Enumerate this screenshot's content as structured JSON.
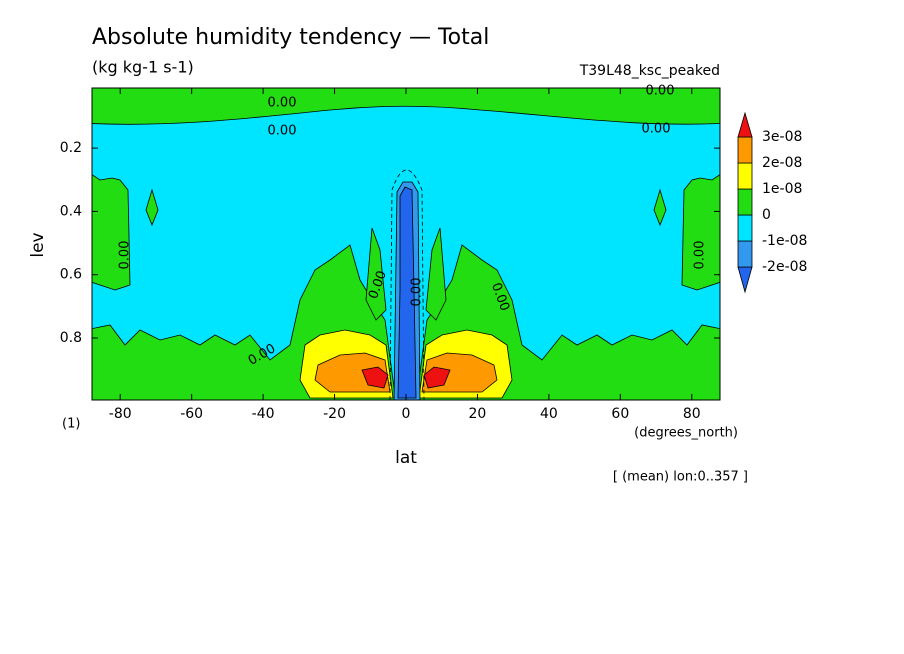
{
  "chart_data": {
    "type": "contour",
    "title": "Absolute humidity tendency — Total",
    "subtitle": "(kg kg-1 s-1)",
    "experiment": "T39L48_ksc_peaked",
    "xlabel": "lat",
    "ylabel": "lev",
    "x_unit": "(degrees_north)",
    "y_unit": "(1)",
    "note": "[ (mean) lon:0..357 ]",
    "xlim": [
      -87.9,
      87.9
    ],
    "xticks": [
      -80,
      -60,
      -40,
      -20,
      0,
      20,
      40,
      60,
      80
    ],
    "ylim": [
      0.996,
      0.01
    ],
    "yticks": [
      0.2,
      0.4,
      0.6,
      0.8
    ],
    "colorbar": {
      "ticks": [
        {
          "value": -2e-08,
          "label": "-2e-08"
        },
        {
          "value": -1e-08,
          "label": "-1e-08"
        },
        0,
        {
          "value": 1e-08,
          "label": "1e-08"
        },
        {
          "value": 2e-08,
          "label": "2e-08"
        },
        {
          "value": 3e-08,
          "label": "3e-08"
        }
      ],
      "colors": [
        "#2266ee",
        "#3399ee",
        "#00e5ff",
        "#22dd11",
        "#ffff00",
        "#ff9900",
        "#ee1111"
      ]
    },
    "contour_labels": [
      "0.00",
      "0.00",
      "0.00",
      "0.00",
      "0.00",
      "0.00",
      "0.00",
      "0.00",
      "0.00",
      "0.00"
    ]
  }
}
